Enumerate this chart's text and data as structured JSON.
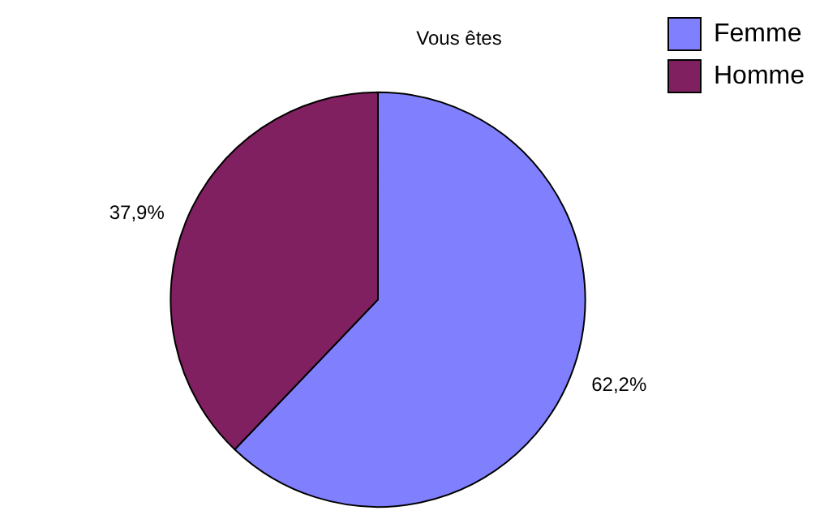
{
  "chart_data": {
    "type": "pie",
    "title": "Vous êtes",
    "categories": [
      "Femme",
      "Homme"
    ],
    "values": [
      62.2,
      37.9
    ],
    "colors": [
      "#8080ff",
      "#802060"
    ],
    "value_labels": [
      "62,2%",
      "37,9%"
    ],
    "legend": "right"
  }
}
